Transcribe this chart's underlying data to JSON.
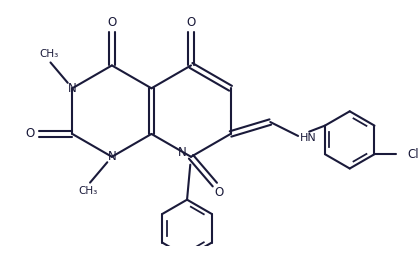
{
  "background": "#ffffff",
  "line_color": "#1a1a3a",
  "line_width": 1.5,
  "figure_width": 4.18,
  "figure_height": 2.54,
  "dpi": 100,
  "xlim": [
    0,
    10
  ],
  "ylim": [
    0,
    6
  ]
}
